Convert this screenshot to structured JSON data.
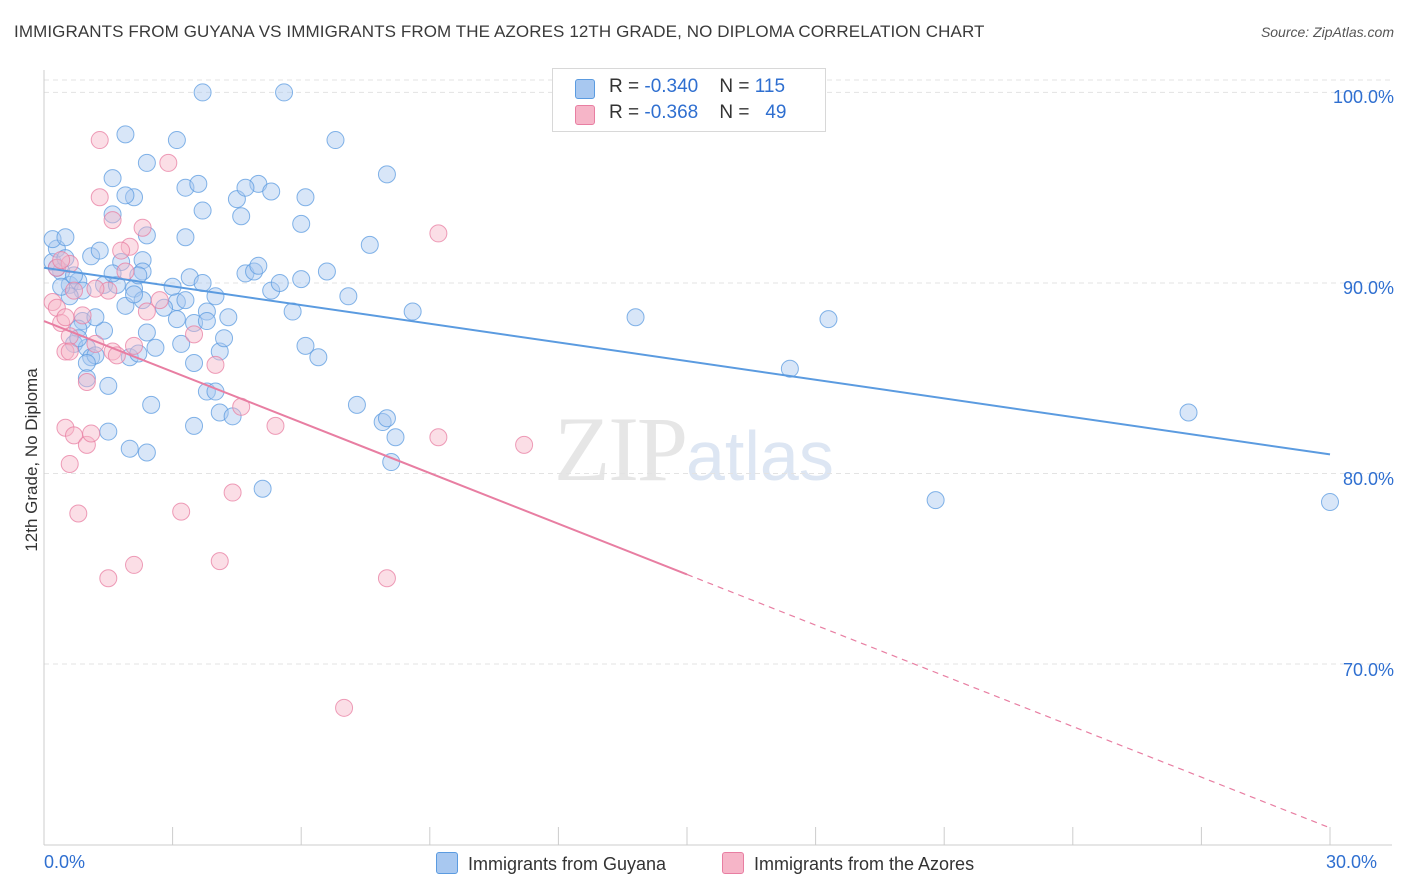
{
  "title": "IMMIGRANTS FROM GUYANA VS IMMIGRANTS FROM THE AZORES 12TH GRADE, NO DIPLOMA CORRELATION CHART",
  "source": "Source: ZipAtlas.com",
  "watermark": {
    "zip": "ZIP",
    "atlas": "atlas"
  },
  "legend_top": [
    {
      "r_label": "R = ",
      "r_value": "-0.340",
      "n_label": "N = ",
      "n_value": "115",
      "color": "#a8c8f0"
    },
    {
      "r_label": "R = ",
      "r_value": "-0.368",
      "n_label": "N = ",
      "n_value": "49",
      "color": "#f6b5c8"
    }
  ],
  "legend_bottom": [
    {
      "label": "Immigrants from Guyana",
      "color": "#a8c8f0"
    },
    {
      "label": "Immigrants from the Azores",
      "color": "#f6b5c8"
    }
  ],
  "chart_data": {
    "type": "scatter",
    "title": "IMMIGRANTS FROM GUYANA VS IMMIGRANTS FROM THE AZORES 12TH GRADE, NO DIPLOMA CORRELATION CHART",
    "xlabel": "",
    "ylabel": "12th Grade, No Diploma",
    "xlim": [
      0,
      30
    ],
    "ylim": [
      60.5,
      101.5
    ],
    "x_tick_labels": [
      "0.0%",
      "30.0%"
    ],
    "y_ticks": [
      70,
      80,
      90,
      100
    ],
    "y_tick_labels": [
      "70.0%",
      "80.0%",
      "90.0%",
      "100.0%"
    ],
    "grid": true,
    "legend_placement": "top-center",
    "series": [
      {
        "name": "Immigrants from Guyana",
        "color": "#5b9be0",
        "fill": "#a8c8f0",
        "trend": {
          "x": [
            0,
            30
          ],
          "y": [
            90.8,
            81.0
          ],
          "dashed_to": null
        },
        "points": [
          [
            0.2,
            91.1
          ],
          [
            0.3,
            91.8
          ],
          [
            0.2,
            92.3
          ],
          [
            0.5,
            92.4
          ],
          [
            0.4,
            90.6
          ],
          [
            0.6,
            89.9
          ],
          [
            0.8,
            90.1
          ],
          [
            1.1,
            91.4
          ],
          [
            0.9,
            89.6
          ],
          [
            1.3,
            91.7
          ],
          [
            0.6,
            89.3
          ],
          [
            0.9,
            88.0
          ],
          [
            0.8,
            87.6
          ],
          [
            0.7,
            86.8
          ],
          [
            1.0,
            86.6
          ],
          [
            1.1,
            86.1
          ],
          [
            1.2,
            86.2
          ],
          [
            1.0,
            85.8
          ],
          [
            1.4,
            87.5
          ],
          [
            1.5,
            84.6
          ],
          [
            1.5,
            82.2
          ],
          [
            2.0,
            81.3
          ],
          [
            2.4,
            81.1
          ],
          [
            2.5,
            83.6
          ],
          [
            2.4,
            87.4
          ],
          [
            2.0,
            86.1
          ],
          [
            2.2,
            86.3
          ],
          [
            1.9,
            88.8
          ],
          [
            2.1,
            89.7
          ],
          [
            2.3,
            89.1
          ],
          [
            1.8,
            91.1
          ],
          [
            2.3,
            91.2
          ],
          [
            2.1,
            94.5
          ],
          [
            1.9,
            94.6
          ],
          [
            1.6,
            95.5
          ],
          [
            1.9,
            97.8
          ],
          [
            2.4,
            96.3
          ],
          [
            2.4,
            92.5
          ],
          [
            1.6,
            93.6
          ],
          [
            2.3,
            90.6
          ],
          [
            3.1,
            89.0
          ],
          [
            3.3,
            89.1
          ],
          [
            3.0,
            89.8
          ],
          [
            3.2,
            86.8
          ],
          [
            3.5,
            87.9
          ],
          [
            3.8,
            88.5
          ],
          [
            3.8,
            88.0
          ],
          [
            3.5,
            85.8
          ],
          [
            3.8,
            84.3
          ],
          [
            4.0,
            84.3
          ],
          [
            4.1,
            83.2
          ],
          [
            4.4,
            83.0
          ],
          [
            3.5,
            82.5
          ],
          [
            4.1,
            86.4
          ],
          [
            4.2,
            87.1
          ],
          [
            3.4,
            90.3
          ],
          [
            3.7,
            90.0
          ],
          [
            4.0,
            89.3
          ],
          [
            4.7,
            90.5
          ],
          [
            4.9,
            90.6
          ],
          [
            5.0,
            90.9
          ],
          [
            5.3,
            89.6
          ],
          [
            5.8,
            88.5
          ],
          [
            6.1,
            86.7
          ],
          [
            6.4,
            86.1
          ],
          [
            6.0,
            90.2
          ],
          [
            6.6,
            90.6
          ],
          [
            7.1,
            89.3
          ],
          [
            6.0,
            93.1
          ],
          [
            6.1,
            94.5
          ],
          [
            5.0,
            95.2
          ],
          [
            5.3,
            94.8
          ],
          [
            4.6,
            93.5
          ],
          [
            4.5,
            94.4
          ],
          [
            4.7,
            95.0
          ],
          [
            3.7,
            93.8
          ],
          [
            3.3,
            95.0
          ],
          [
            3.6,
            95.2
          ],
          [
            3.1,
            97.5
          ],
          [
            3.3,
            92.4
          ],
          [
            3.7,
            100.0
          ],
          [
            5.6,
            100.0
          ],
          [
            6.8,
            97.5
          ],
          [
            8.0,
            95.7
          ],
          [
            7.6,
            92.0
          ],
          [
            8.6,
            88.5
          ],
          [
            7.3,
            83.6
          ],
          [
            7.9,
            82.7
          ],
          [
            8.0,
            82.9
          ],
          [
            8.2,
            81.9
          ],
          [
            8.1,
            80.6
          ],
          [
            5.1,
            79.2
          ],
          [
            13.8,
            88.2
          ],
          [
            17.4,
            85.5
          ],
          [
            18.3,
            88.1
          ],
          [
            20.8,
            78.6
          ],
          [
            26.7,
            83.2
          ],
          [
            30.0,
            78.5
          ],
          [
            1.0,
            85.0
          ],
          [
            0.4,
            89.8
          ],
          [
            0.7,
            90.4
          ],
          [
            1.4,
            89.9
          ],
          [
            2.6,
            86.6
          ],
          [
            2.8,
            88.7
          ],
          [
            1.7,
            89.9
          ],
          [
            0.8,
            87.1
          ],
          [
            1.2,
            88.2
          ],
          [
            2.2,
            90.4
          ],
          [
            3.1,
            88.1
          ],
          [
            0.3,
            90.8
          ],
          [
            0.5,
            91.3
          ],
          [
            1.6,
            90.5
          ],
          [
            4.3,
            88.2
          ],
          [
            5.5,
            90.0
          ],
          [
            2.1,
            89.4
          ]
        ]
      },
      {
        "name": "Immigrants from the Azores",
        "color": "#e87ea2",
        "fill": "#f6b5c8",
        "trend": {
          "x": [
            0,
            15
          ],
          "y": [
            88.0,
            74.7
          ],
          "dashed_to": [
            30,
            61.4
          ]
        },
        "points": [
          [
            0.2,
            89.0
          ],
          [
            0.3,
            88.7
          ],
          [
            0.3,
            90.8
          ],
          [
            0.4,
            87.9
          ],
          [
            0.5,
            86.4
          ],
          [
            0.6,
            87.2
          ],
          [
            0.5,
            88.2
          ],
          [
            0.6,
            91.0
          ],
          [
            0.4,
            91.2
          ],
          [
            0.7,
            89.6
          ],
          [
            0.5,
            82.4
          ],
          [
            0.7,
            82.0
          ],
          [
            0.6,
            80.5
          ],
          [
            1.0,
            81.5
          ],
          [
            1.1,
            82.1
          ],
          [
            0.8,
            77.9
          ],
          [
            1.0,
            84.8
          ],
          [
            1.2,
            86.8
          ],
          [
            1.6,
            86.4
          ],
          [
            1.7,
            86.2
          ],
          [
            2.1,
            86.7
          ],
          [
            1.5,
            89.6
          ],
          [
            1.6,
            93.3
          ],
          [
            1.9,
            90.6
          ],
          [
            1.3,
            94.5
          ],
          [
            1.3,
            97.5
          ],
          [
            2.3,
            92.9
          ],
          [
            2.0,
            91.9
          ],
          [
            2.4,
            88.5
          ],
          [
            2.7,
            89.1
          ],
          [
            2.9,
            96.3
          ],
          [
            4.0,
            85.7
          ],
          [
            3.2,
            78.0
          ],
          [
            2.1,
            75.2
          ],
          [
            1.5,
            74.5
          ],
          [
            4.4,
            79.0
          ],
          [
            4.1,
            75.4
          ],
          [
            5.4,
            82.5
          ],
          [
            7.0,
            67.7
          ],
          [
            8.0,
            74.5
          ],
          [
            9.2,
            81.9
          ],
          [
            9.2,
            92.6
          ],
          [
            11.2,
            81.5
          ],
          [
            4.6,
            83.5
          ],
          [
            1.8,
            91.7
          ],
          [
            0.9,
            88.3
          ],
          [
            1.2,
            89.7
          ],
          [
            0.6,
            86.4
          ],
          [
            3.5,
            87.3
          ]
        ]
      }
    ]
  }
}
